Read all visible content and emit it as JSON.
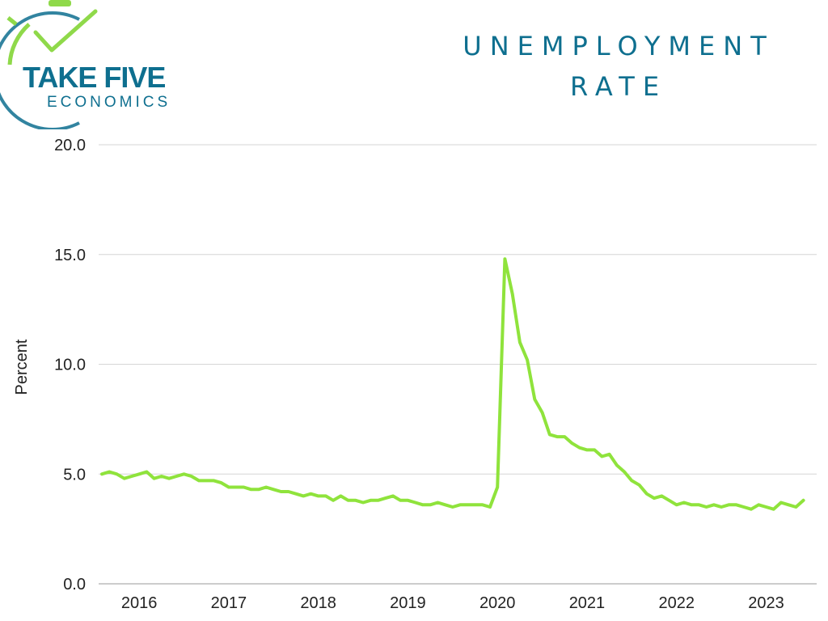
{
  "logo": {
    "name_line1": "TAKE FIVE",
    "name_line2": "ECONOMICS"
  },
  "colors": {
    "brand_teal": "#0e6f8f",
    "logo_green": "#8fd94a",
    "line": "#8fe33c",
    "grid": "#d6d6d6"
  },
  "chart_data": {
    "type": "line",
    "title": [
      "UNEMPLOYMENT",
      "RATE"
    ],
    "xlabel": "",
    "ylabel": "Percent",
    "ylim": [
      0,
      20
    ],
    "yticks": [
      "0.0",
      "5.0",
      "10.0",
      "15.0",
      "20.0"
    ],
    "xticks": [
      "2016",
      "2017",
      "2018",
      "2019",
      "2020",
      "2021",
      "2022",
      "2023"
    ],
    "grid": true,
    "legend": "none",
    "series": [
      {
        "x_start": "2015-10",
        "frequency": "monthly",
        "values": [
          5.0,
          5.1,
          5.0,
          4.8,
          4.9,
          5.0,
          5.1,
          4.8,
          4.9,
          4.8,
          4.9,
          5.0,
          4.9,
          4.7,
          4.7,
          4.7,
          4.6,
          4.4,
          4.4,
          4.4,
          4.3,
          4.3,
          4.4,
          4.3,
          4.2,
          4.2,
          4.1,
          4.0,
          4.1,
          4.0,
          4.0,
          3.8,
          4.0,
          3.8,
          3.8,
          3.7,
          3.8,
          3.8,
          3.9,
          4.0,
          3.8,
          3.8,
          3.7,
          3.6,
          3.6,
          3.7,
          3.6,
          3.5,
          3.6,
          3.6,
          3.6,
          3.6,
          3.5,
          4.4,
          14.8,
          13.2,
          11.0,
          10.2,
          8.4,
          7.8,
          6.8,
          6.7,
          6.7,
          6.4,
          6.2,
          6.1,
          6.1,
          5.8,
          5.9,
          5.4,
          5.1,
          4.7,
          4.5,
          4.1,
          3.9,
          4.0,
          3.8,
          3.6,
          3.7,
          3.6,
          3.6,
          3.5,
          3.6,
          3.5,
          3.6,
          3.6,
          3.5,
          3.4,
          3.6,
          3.5,
          3.4,
          3.7,
          3.6,
          3.5,
          3.8
        ]
      }
    ]
  }
}
